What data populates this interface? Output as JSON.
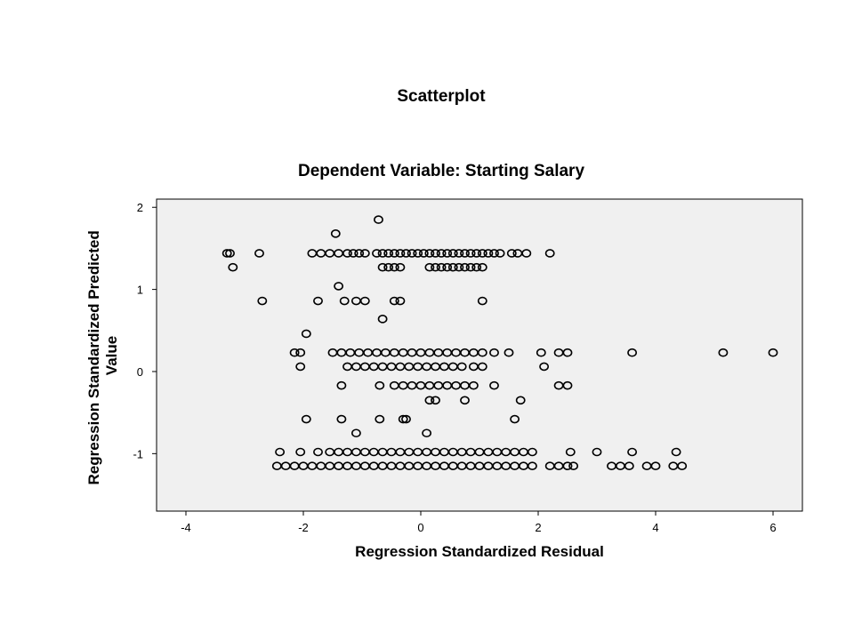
{
  "chart_data": {
    "type": "scatter",
    "title": "Scatterplot",
    "subtitle": "Dependent Variable: Starting Salary",
    "xlabel": "Regression Standardized Residual",
    "ylabel": "Regression Standardized Predicted Value",
    "xlim": [
      -4.5,
      6.5
    ],
    "ylim": [
      -1.7,
      2.1
    ],
    "xticks": [
      -4,
      -2,
      0,
      2,
      4,
      6
    ],
    "xtick_labels": [
      "-4",
      "-2",
      "0",
      "2",
      "4",
      "6"
    ],
    "yticks": [
      -1,
      0,
      1,
      2
    ],
    "ytick_labels": [
      "-1",
      "0",
      "1",
      "2"
    ],
    "grid": false,
    "background_color": "#f0f0f0",
    "marker": "hollow-circle",
    "points": [
      {
        "x": -0.72,
        "y": 1.85
      },
      {
        "x": -1.45,
        "y": 1.68
      },
      {
        "x": -3.3,
        "y": 1.44
      },
      {
        "x": -3.25,
        "y": 1.44
      },
      {
        "x": -2.75,
        "y": 1.44
      },
      {
        "x": -1.85,
        "y": 1.44
      },
      {
        "x": -1.7,
        "y": 1.44
      },
      {
        "x": -1.55,
        "y": 1.44
      },
      {
        "x": -1.4,
        "y": 1.44
      },
      {
        "x": -1.25,
        "y": 1.44
      },
      {
        "x": -1.15,
        "y": 1.44
      },
      {
        "x": -1.05,
        "y": 1.44
      },
      {
        "x": -0.95,
        "y": 1.44
      },
      {
        "x": -0.75,
        "y": 1.44
      },
      {
        "x": -0.65,
        "y": 1.44
      },
      {
        "x": -0.55,
        "y": 1.44
      },
      {
        "x": -0.45,
        "y": 1.44
      },
      {
        "x": -0.35,
        "y": 1.44
      },
      {
        "x": -0.25,
        "y": 1.44
      },
      {
        "x": -0.15,
        "y": 1.44
      },
      {
        "x": -0.05,
        "y": 1.44
      },
      {
        "x": 0.05,
        "y": 1.44
      },
      {
        "x": 0.15,
        "y": 1.44
      },
      {
        "x": 0.25,
        "y": 1.44
      },
      {
        "x": 0.35,
        "y": 1.44
      },
      {
        "x": 0.45,
        "y": 1.44
      },
      {
        "x": 0.55,
        "y": 1.44
      },
      {
        "x": 0.65,
        "y": 1.44
      },
      {
        "x": 0.75,
        "y": 1.44
      },
      {
        "x": 0.85,
        "y": 1.44
      },
      {
        "x": 0.95,
        "y": 1.44
      },
      {
        "x": 1.05,
        "y": 1.44
      },
      {
        "x": 1.15,
        "y": 1.44
      },
      {
        "x": 1.25,
        "y": 1.44
      },
      {
        "x": 1.35,
        "y": 1.44
      },
      {
        "x": 1.55,
        "y": 1.44
      },
      {
        "x": 1.65,
        "y": 1.44
      },
      {
        "x": 1.8,
        "y": 1.44
      },
      {
        "x": 2.2,
        "y": 1.44
      },
      {
        "x": -3.2,
        "y": 1.27
      },
      {
        "x": -0.65,
        "y": 1.27
      },
      {
        "x": -0.55,
        "y": 1.27
      },
      {
        "x": -0.45,
        "y": 1.27
      },
      {
        "x": -0.35,
        "y": 1.27
      },
      {
        "x": 0.15,
        "y": 1.27
      },
      {
        "x": 0.25,
        "y": 1.27
      },
      {
        "x": 0.35,
        "y": 1.27
      },
      {
        "x": 0.45,
        "y": 1.27
      },
      {
        "x": 0.55,
        "y": 1.27
      },
      {
        "x": 0.65,
        "y": 1.27
      },
      {
        "x": 0.75,
        "y": 1.27
      },
      {
        "x": 0.85,
        "y": 1.27
      },
      {
        "x": 0.95,
        "y": 1.27
      },
      {
        "x": 1.05,
        "y": 1.27
      },
      {
        "x": -1.4,
        "y": 1.04
      },
      {
        "x": -2.7,
        "y": 0.86
      },
      {
        "x": -1.75,
        "y": 0.86
      },
      {
        "x": -1.3,
        "y": 0.86
      },
      {
        "x": -1.1,
        "y": 0.86
      },
      {
        "x": -0.95,
        "y": 0.86
      },
      {
        "x": -0.45,
        "y": 0.86
      },
      {
        "x": -0.35,
        "y": 0.86
      },
      {
        "x": 1.05,
        "y": 0.86
      },
      {
        "x": -0.65,
        "y": 0.64
      },
      {
        "x": -1.95,
        "y": 0.46
      },
      {
        "x": -2.15,
        "y": 0.23
      },
      {
        "x": -2.05,
        "y": 0.23
      },
      {
        "x": -1.5,
        "y": 0.23
      },
      {
        "x": -1.35,
        "y": 0.23
      },
      {
        "x": -1.2,
        "y": 0.23
      },
      {
        "x": -1.05,
        "y": 0.23
      },
      {
        "x": -0.9,
        "y": 0.23
      },
      {
        "x": -0.75,
        "y": 0.23
      },
      {
        "x": -0.6,
        "y": 0.23
      },
      {
        "x": -0.45,
        "y": 0.23
      },
      {
        "x": -0.3,
        "y": 0.23
      },
      {
        "x": -0.15,
        "y": 0.23
      },
      {
        "x": 0.0,
        "y": 0.23
      },
      {
        "x": 0.15,
        "y": 0.23
      },
      {
        "x": 0.3,
        "y": 0.23
      },
      {
        "x": 0.45,
        "y": 0.23
      },
      {
        "x": 0.6,
        "y": 0.23
      },
      {
        "x": 0.75,
        "y": 0.23
      },
      {
        "x": 0.9,
        "y": 0.23
      },
      {
        "x": 1.05,
        "y": 0.23
      },
      {
        "x": 1.25,
        "y": 0.23
      },
      {
        "x": 1.5,
        "y": 0.23
      },
      {
        "x": 2.05,
        "y": 0.23
      },
      {
        "x": 2.35,
        "y": 0.23
      },
      {
        "x": 2.5,
        "y": 0.23
      },
      {
        "x": 3.6,
        "y": 0.23
      },
      {
        "x": 5.15,
        "y": 0.23
      },
      {
        "x": 6.0,
        "y": 0.23
      },
      {
        "x": -2.05,
        "y": 0.06
      },
      {
        "x": -1.25,
        "y": 0.06
      },
      {
        "x": -1.1,
        "y": 0.06
      },
      {
        "x": -0.95,
        "y": 0.06
      },
      {
        "x": -0.8,
        "y": 0.06
      },
      {
        "x": -0.65,
        "y": 0.06
      },
      {
        "x": -0.5,
        "y": 0.06
      },
      {
        "x": -0.35,
        "y": 0.06
      },
      {
        "x": -0.2,
        "y": 0.06
      },
      {
        "x": -0.05,
        "y": 0.06
      },
      {
        "x": 0.1,
        "y": 0.06
      },
      {
        "x": 0.25,
        "y": 0.06
      },
      {
        "x": 0.4,
        "y": 0.06
      },
      {
        "x": 0.55,
        "y": 0.06
      },
      {
        "x": 0.7,
        "y": 0.06
      },
      {
        "x": 0.9,
        "y": 0.06
      },
      {
        "x": 1.05,
        "y": 0.06
      },
      {
        "x": 2.1,
        "y": 0.06
      },
      {
        "x": -1.35,
        "y": -0.17
      },
      {
        "x": -0.7,
        "y": -0.17
      },
      {
        "x": -0.45,
        "y": -0.17
      },
      {
        "x": -0.3,
        "y": -0.17
      },
      {
        "x": -0.15,
        "y": -0.17
      },
      {
        "x": 0.0,
        "y": -0.17
      },
      {
        "x": 0.15,
        "y": -0.17
      },
      {
        "x": 0.3,
        "y": -0.17
      },
      {
        "x": 0.45,
        "y": -0.17
      },
      {
        "x": 0.6,
        "y": -0.17
      },
      {
        "x": 0.75,
        "y": -0.17
      },
      {
        "x": 0.9,
        "y": -0.17
      },
      {
        "x": 1.25,
        "y": -0.17
      },
      {
        "x": 2.35,
        "y": -0.17
      },
      {
        "x": 2.5,
        "y": -0.17
      },
      {
        "x": 0.15,
        "y": -0.35
      },
      {
        "x": 0.25,
        "y": -0.35
      },
      {
        "x": 0.75,
        "y": -0.35
      },
      {
        "x": 1.7,
        "y": -0.35
      },
      {
        "x": -1.95,
        "y": -0.58
      },
      {
        "x": -1.35,
        "y": -0.58
      },
      {
        "x": -0.7,
        "y": -0.58
      },
      {
        "x": -0.3,
        "y": -0.58
      },
      {
        "x": -0.25,
        "y": -0.58
      },
      {
        "x": 1.6,
        "y": -0.58
      },
      {
        "x": -1.1,
        "y": -0.75
      },
      {
        "x": 0.1,
        "y": -0.75
      },
      {
        "x": -2.4,
        "y": -0.98
      },
      {
        "x": -2.05,
        "y": -0.98
      },
      {
        "x": -1.75,
        "y": -0.98
      },
      {
        "x": -1.55,
        "y": -0.98
      },
      {
        "x": -1.4,
        "y": -0.98
      },
      {
        "x": -1.25,
        "y": -0.98
      },
      {
        "x": -1.1,
        "y": -0.98
      },
      {
        "x": -0.95,
        "y": -0.98
      },
      {
        "x": -0.8,
        "y": -0.98
      },
      {
        "x": -0.65,
        "y": -0.98
      },
      {
        "x": -0.5,
        "y": -0.98
      },
      {
        "x": -0.35,
        "y": -0.98
      },
      {
        "x": -0.2,
        "y": -0.98
      },
      {
        "x": -0.05,
        "y": -0.98
      },
      {
        "x": 0.1,
        "y": -0.98
      },
      {
        "x": 0.25,
        "y": -0.98
      },
      {
        "x": 0.4,
        "y": -0.98
      },
      {
        "x": 0.55,
        "y": -0.98
      },
      {
        "x": 0.7,
        "y": -0.98
      },
      {
        "x": 0.85,
        "y": -0.98
      },
      {
        "x": 1.0,
        "y": -0.98
      },
      {
        "x": 1.15,
        "y": -0.98
      },
      {
        "x": 1.3,
        "y": -0.98
      },
      {
        "x": 1.45,
        "y": -0.98
      },
      {
        "x": 1.6,
        "y": -0.98
      },
      {
        "x": 1.75,
        "y": -0.98
      },
      {
        "x": 1.9,
        "y": -0.98
      },
      {
        "x": 2.55,
        "y": -0.98
      },
      {
        "x": 3.0,
        "y": -0.98
      },
      {
        "x": 3.6,
        "y": -0.98
      },
      {
        "x": 4.35,
        "y": -0.98
      },
      {
        "x": -2.45,
        "y": -1.15
      },
      {
        "x": -2.3,
        "y": -1.15
      },
      {
        "x": -2.15,
        "y": -1.15
      },
      {
        "x": -2.0,
        "y": -1.15
      },
      {
        "x": -1.85,
        "y": -1.15
      },
      {
        "x": -1.7,
        "y": -1.15
      },
      {
        "x": -1.55,
        "y": -1.15
      },
      {
        "x": -1.4,
        "y": -1.15
      },
      {
        "x": -1.25,
        "y": -1.15
      },
      {
        "x": -1.1,
        "y": -1.15
      },
      {
        "x": -0.95,
        "y": -1.15
      },
      {
        "x": -0.8,
        "y": -1.15
      },
      {
        "x": -0.65,
        "y": -1.15
      },
      {
        "x": -0.5,
        "y": -1.15
      },
      {
        "x": -0.35,
        "y": -1.15
      },
      {
        "x": -0.2,
        "y": -1.15
      },
      {
        "x": -0.05,
        "y": -1.15
      },
      {
        "x": 0.1,
        "y": -1.15
      },
      {
        "x": 0.25,
        "y": -1.15
      },
      {
        "x": 0.4,
        "y": -1.15
      },
      {
        "x": 0.55,
        "y": -1.15
      },
      {
        "x": 0.7,
        "y": -1.15
      },
      {
        "x": 0.85,
        "y": -1.15
      },
      {
        "x": 1.0,
        "y": -1.15
      },
      {
        "x": 1.15,
        "y": -1.15
      },
      {
        "x": 1.3,
        "y": -1.15
      },
      {
        "x": 1.45,
        "y": -1.15
      },
      {
        "x": 1.6,
        "y": -1.15
      },
      {
        "x": 1.75,
        "y": -1.15
      },
      {
        "x": 1.9,
        "y": -1.15
      },
      {
        "x": 2.2,
        "y": -1.15
      },
      {
        "x": 2.35,
        "y": -1.15
      },
      {
        "x": 2.5,
        "y": -1.15
      },
      {
        "x": 2.6,
        "y": -1.15
      },
      {
        "x": 3.25,
        "y": -1.15
      },
      {
        "x": 3.4,
        "y": -1.15
      },
      {
        "x": 3.55,
        "y": -1.15
      },
      {
        "x": 3.85,
        "y": -1.15
      },
      {
        "x": 4.0,
        "y": -1.15
      },
      {
        "x": 4.3,
        "y": -1.15
      },
      {
        "x": 4.45,
        "y": -1.15
      }
    ]
  }
}
